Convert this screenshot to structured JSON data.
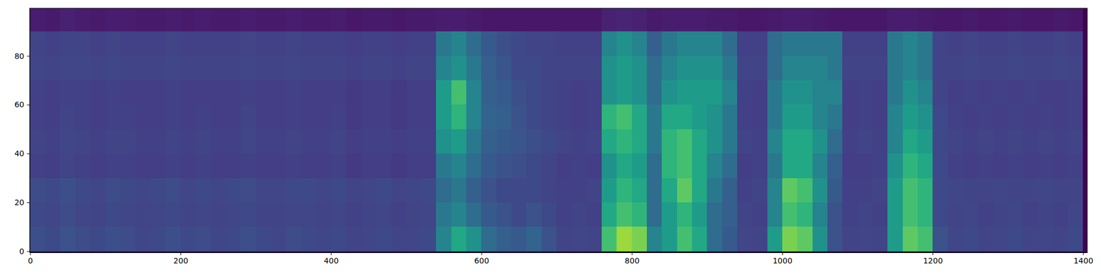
{
  "chart_data": {
    "type": "heatmap",
    "x_bins": [
      0,
      20,
      40,
      60,
      80,
      100,
      120,
      140,
      160,
      180,
      200,
      220,
      240,
      260,
      280,
      300,
      320,
      340,
      360,
      380,
      400,
      420,
      440,
      460,
      480,
      500,
      520,
      540,
      560,
      580,
      600,
      620,
      640,
      660,
      680,
      700,
      720,
      740,
      760,
      780,
      800,
      820,
      840,
      860,
      880,
      900,
      920,
      940,
      960,
      980,
      1000,
      1020,
      1040,
      1060,
      1080,
      1100,
      1120,
      1140,
      1160,
      1180,
      1200,
      1220,
      1240,
      1260,
      1280,
      1300,
      1320,
      1340,
      1360,
      1380,
      1400
    ],
    "y_bins": [
      0,
      10,
      20,
      30,
      40,
      50,
      60,
      70,
      80,
      90,
      100
    ],
    "cells": [
      [
        24,
        22,
        25,
        23,
        22,
        24,
        23,
        21,
        22,
        24,
        22,
        23,
        21,
        22,
        24,
        22,
        21,
        23,
        22,
        21,
        22,
        20,
        21,
        22,
        20,
        21,
        22,
        45,
        60,
        50,
        35,
        30,
        28,
        32,
        25,
        20,
        21,
        20,
        70,
        85,
        80,
        45,
        55,
        70,
        60,
        35,
        28,
        21,
        20,
        55,
        80,
        75,
        50,
        25,
        20,
        21,
        20,
        55,
        75,
        70,
        25,
        21,
        22,
        20,
        21,
        22,
        20,
        21,
        20,
        22
      ],
      [
        22,
        21,
        23,
        21,
        20,
        22,
        21,
        20,
        21,
        22,
        20,
        21,
        20,
        21,
        22,
        20,
        20,
        21,
        21,
        20,
        21,
        19,
        20,
        21,
        19,
        20,
        21,
        40,
        45,
        35,
        28,
        25,
        22,
        25,
        22,
        19,
        20,
        19,
        60,
        70,
        65,
        35,
        55,
        65,
        55,
        35,
        30,
        20,
        19,
        45,
        70,
        65,
        45,
        25,
        19,
        20,
        19,
        55,
        70,
        65,
        22,
        20,
        21,
        19,
        20,
        21,
        19,
        20,
        19,
        21
      ],
      [
        23,
        22,
        24,
        22,
        21,
        23,
        22,
        21,
        22,
        23,
        21,
        22,
        21,
        22,
        23,
        21,
        21,
        22,
        22,
        21,
        22,
        20,
        21,
        22,
        20,
        21,
        22,
        35,
        40,
        30,
        25,
        22,
        22,
        22,
        20,
        19,
        19,
        20,
        55,
        65,
        60,
        35,
        60,
        75,
        60,
        40,
        30,
        19,
        20,
        45,
        75,
        70,
        50,
        28,
        19,
        19,
        20,
        55,
        70,
        65,
        22,
        21,
        20,
        20,
        21,
        20,
        20,
        21,
        20,
        20
      ],
      [
        19,
        18,
        20,
        19,
        18,
        19,
        19,
        18,
        18,
        19,
        18,
        19,
        18,
        18,
        19,
        18,
        18,
        19,
        18,
        18,
        19,
        17,
        18,
        18,
        17,
        18,
        18,
        40,
        45,
        35,
        28,
        25,
        24,
        22,
        20,
        18,
        19,
        18,
        50,
        60,
        55,
        35,
        65,
        70,
        60,
        45,
        35,
        18,
        19,
        40,
        60,
        60,
        45,
        30,
        18,
        18,
        19,
        50,
        65,
        60,
        22,
        19,
        18,
        19,
        18,
        19,
        18,
        19,
        18,
        19
      ],
      [
        20,
        19,
        21,
        20,
        19,
        20,
        20,
        19,
        19,
        20,
        19,
        20,
        19,
        19,
        21,
        19,
        19,
        20,
        19,
        19,
        20,
        18,
        19,
        19,
        18,
        19,
        19,
        50,
        55,
        40,
        30,
        28,
        26,
        24,
        22,
        20,
        19,
        20,
        60,
        65,
        60,
        40,
        65,
        70,
        60,
        50,
        40,
        20,
        19,
        45,
        60,
        60,
        50,
        35,
        19,
        20,
        19,
        45,
        60,
        55,
        22,
        20,
        19,
        20,
        19,
        20,
        19,
        20,
        19,
        20
      ],
      [
        19,
        18,
        20,
        19,
        18,
        19,
        19,
        18,
        18,
        19,
        18,
        19,
        18,
        18,
        20,
        18,
        18,
        19,
        18,
        18,
        19,
        17,
        18,
        18,
        17,
        18,
        18,
        55,
        65,
        45,
        32,
        30,
        25,
        22,
        20,
        19,
        18,
        19,
        65,
        70,
        60,
        40,
        60,
        60,
        55,
        50,
        40,
        19,
        18,
        40,
        55,
        55,
        45,
        40,
        18,
        19,
        18,
        45,
        55,
        50,
        22,
        19,
        18,
        19,
        18,
        19,
        18,
        19,
        18,
        19
      ],
      [
        19,
        18,
        19,
        19,
        18,
        19,
        18,
        18,
        18,
        19,
        18,
        18,
        18,
        18,
        19,
        18,
        18,
        19,
        18,
        18,
        18,
        17,
        18,
        18,
        17,
        18,
        18,
        55,
        70,
        45,
        30,
        28,
        24,
        22,
        20,
        19,
        18,
        19,
        50,
        55,
        50,
        35,
        50,
        55,
        55,
        55,
        45,
        19,
        18,
        40,
        50,
        50,
        45,
        45,
        18,
        19,
        18,
        40,
        50,
        45,
        20,
        18,
        19,
        18,
        19,
        18,
        19,
        18,
        18,
        19
      ],
      [
        21,
        20,
        21,
        21,
        20,
        21,
        20,
        20,
        20,
        21,
        20,
        20,
        20,
        20,
        21,
        20,
        20,
        21,
        20,
        20,
        20,
        19,
        20,
        20,
        19,
        20,
        20,
        45,
        50,
        40,
        30,
        26,
        22,
        22,
        20,
        20,
        20,
        20,
        50,
        55,
        50,
        35,
        45,
        50,
        50,
        50,
        40,
        20,
        20,
        35,
        45,
        45,
        45,
        40,
        20,
        20,
        20,
        40,
        45,
        40,
        20,
        20,
        21,
        20,
        20,
        21,
        20,
        20,
        21,
        20
      ],
      [
        20,
        19,
        20,
        20,
        19,
        20,
        19,
        19,
        19,
        20,
        19,
        19,
        19,
        19,
        20,
        19,
        19,
        20,
        19,
        19,
        19,
        18,
        19,
        19,
        18,
        19,
        19,
        40,
        45,
        35,
        28,
        24,
        22,
        20,
        20,
        19,
        19,
        19,
        45,
        50,
        45,
        30,
        40,
        45,
        45,
        45,
        35,
        19,
        19,
        35,
        40,
        40,
        40,
        40,
        19,
        19,
        19,
        40,
        45,
        40,
        20,
        19,
        20,
        19,
        19,
        20,
        19,
        19,
        20,
        19
      ],
      [
        8,
        7,
        9,
        8,
        7,
        8,
        8,
        7,
        7,
        8,
        7,
        8,
        7,
        7,
        8,
        7,
        7,
        8,
        7,
        7,
        8,
        6,
        7,
        7,
        6,
        7,
        7,
        8,
        8,
        7,
        6,
        6,
        6,
        6,
        6,
        6,
        6,
        6,
        9,
        10,
        9,
        7,
        8,
        8,
        8,
        7,
        7,
        6,
        6,
        7,
        8,
        8,
        7,
        6,
        6,
        6,
        6,
        8,
        8,
        7,
        6,
        6,
        7,
        6,
        6,
        7,
        6,
        6,
        7,
        6
      ]
    ],
    "color_range": [
      0,
      100
    ],
    "xlim": [
      -0.5,
      1405.5
    ],
    "ylim": [
      -0.5,
      99.5
    ],
    "xticks": [
      0,
      200,
      400,
      600,
      800,
      1000,
      1200,
      1400
    ],
    "yticks": [
      0,
      20,
      40,
      60,
      80
    ]
  }
}
